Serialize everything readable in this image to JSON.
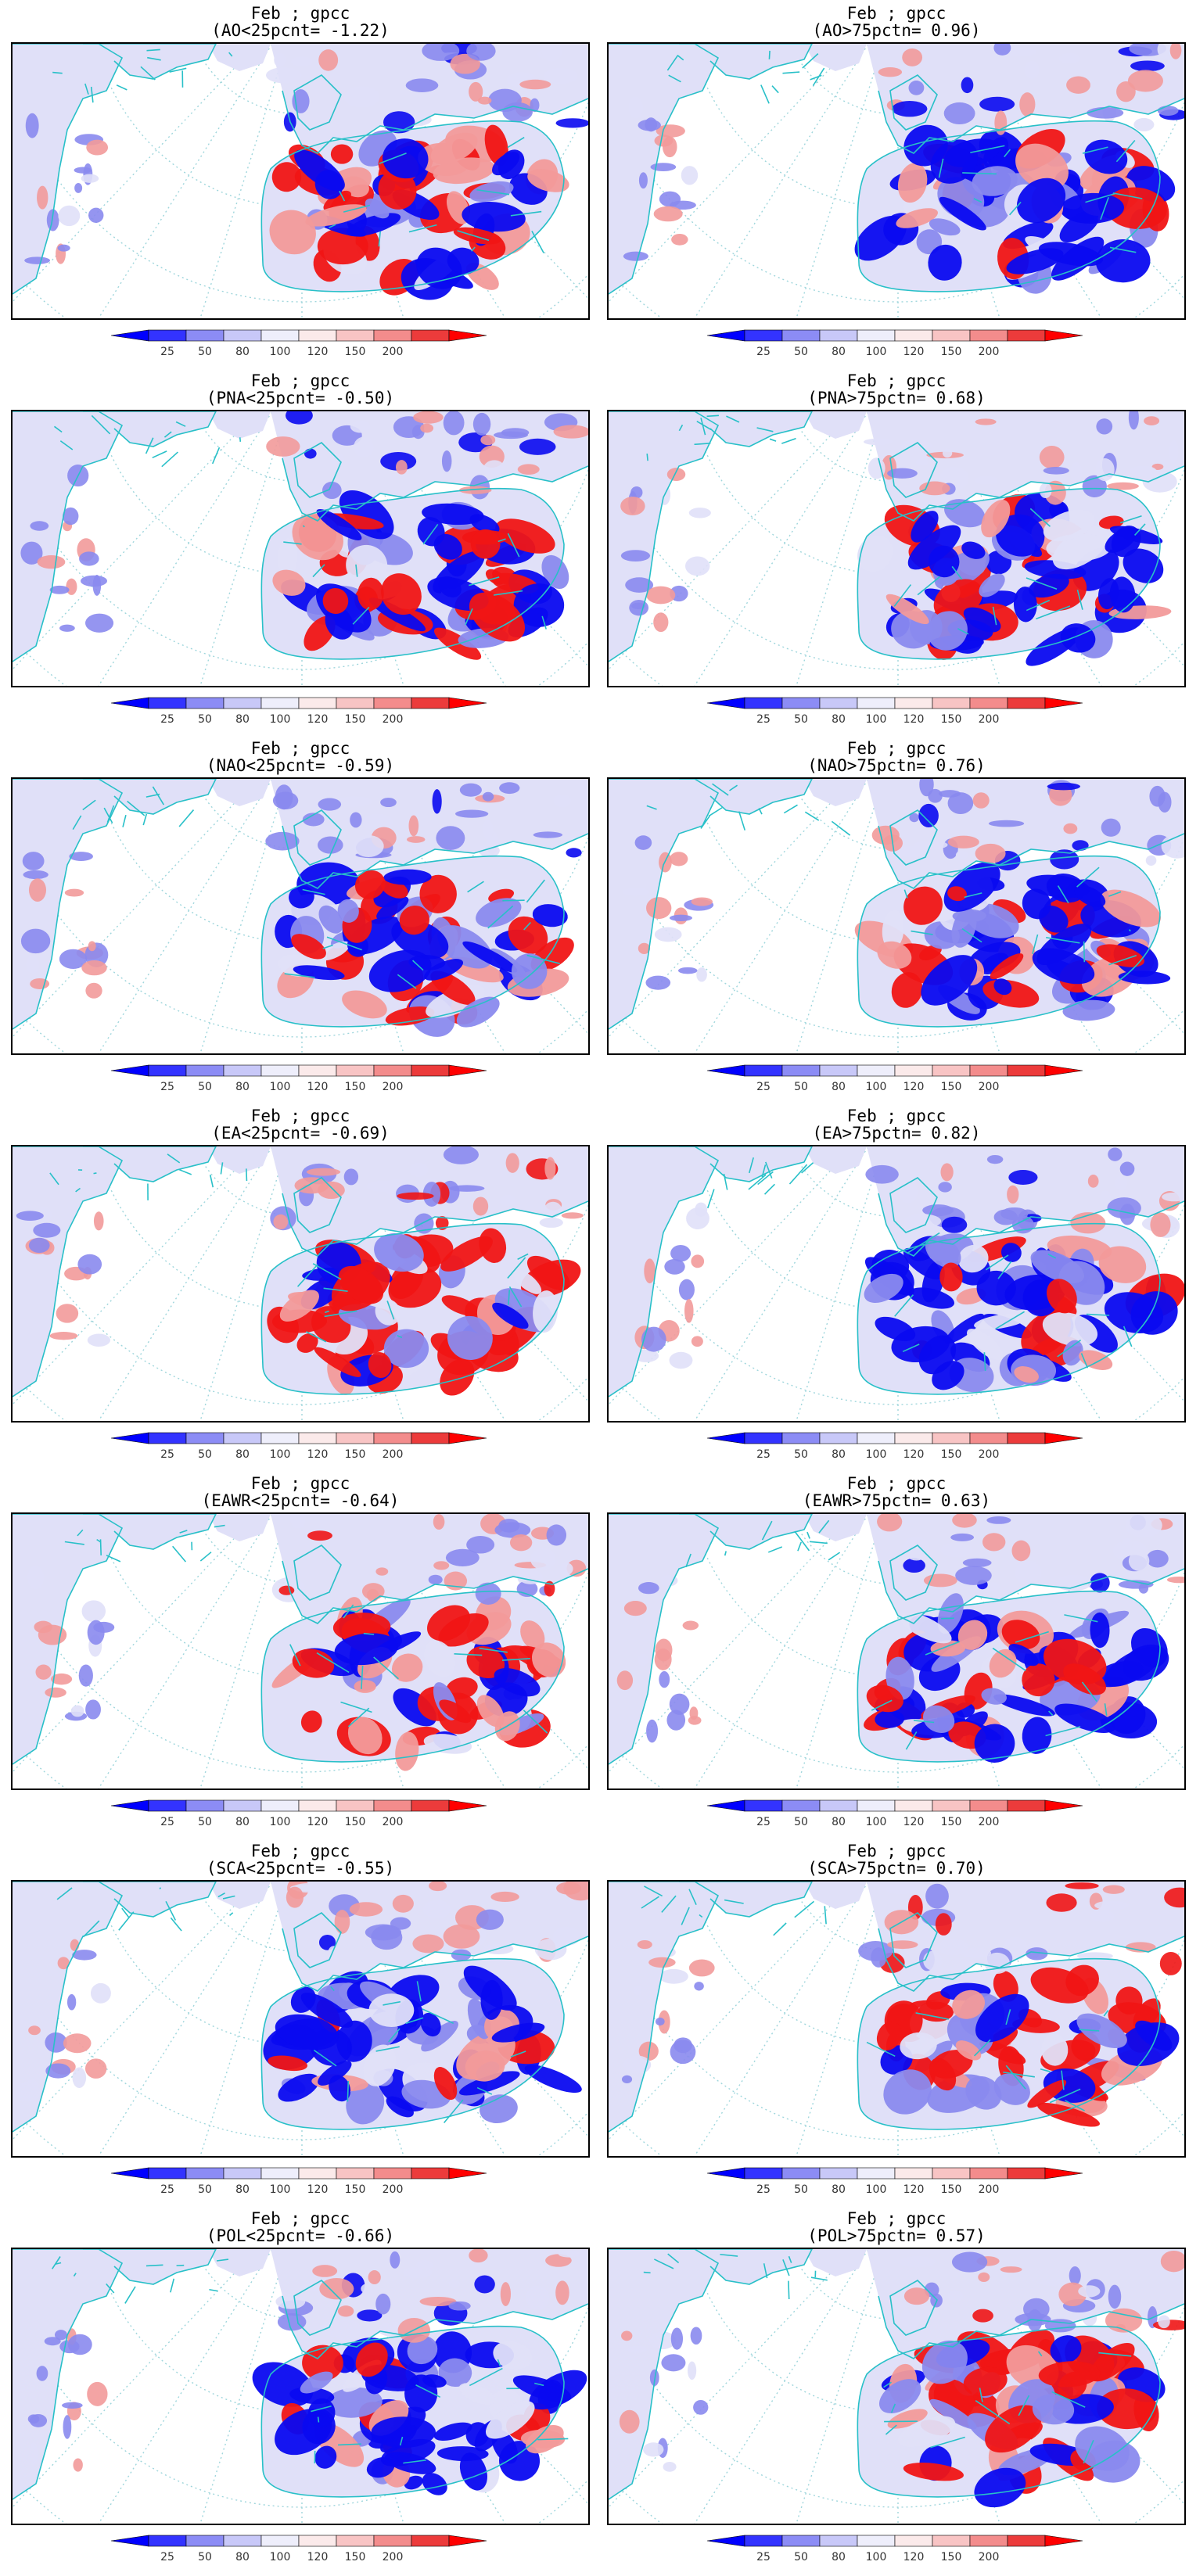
{
  "colorbar": {
    "levels": [
      "25",
      "50",
      "80",
      "100",
      "120",
      "150",
      "200"
    ],
    "colors": [
      "#0000ff",
      "#3333ff",
      "#8c8cf5",
      "#c8c8f8",
      "#eeeefb",
      "#fbeaea",
      "#f8c4c4",
      "#f38c8c",
      "#ec3b3b",
      "#ff0000"
    ]
  },
  "map_colors": {
    "land_light": "#e0e0f8",
    "blue": "#0a0af0",
    "blue_mid": "#8a8aee",
    "red": "#f01515",
    "red_mid": "#f29a9a",
    "coast": "#28c0c8",
    "graticule": "#9fd6dc"
  },
  "panels": [
    {
      "title": "Feb ; gpcc",
      "subtitle": "(AO<25pcnt=   -1.22)",
      "pattern": "mixed"
    },
    {
      "title": "Feb ; gpcc",
      "subtitle": "(AO>75pctn=    0.96)",
      "pattern": "blue"
    },
    {
      "title": "Feb ; gpcc",
      "subtitle": "(PNA<25pcnt=   -0.50)",
      "pattern": "blue_mixed"
    },
    {
      "title": "Feb ; gpcc",
      "subtitle": "(PNA>75pctn=    0.68)",
      "pattern": "blue_mixed"
    },
    {
      "title": "Feb ; gpcc",
      "subtitle": "(NAO<25pcnt=   -0.59)",
      "pattern": "mixed"
    },
    {
      "title": "Feb ; gpcc",
      "subtitle": "(NAO>75pctn=    0.76)",
      "pattern": "blue"
    },
    {
      "title": "Feb ; gpcc",
      "subtitle": "(EA<25pcnt=   -0.69)",
      "pattern": "red"
    },
    {
      "title": "Feb ; gpcc",
      "subtitle": "(EA>75pctn=    0.82)",
      "pattern": "blue"
    },
    {
      "title": "Feb ; gpcc",
      "subtitle": "(EAWR<25pcnt=   -0.64)",
      "pattern": "red_mixed"
    },
    {
      "title": "Feb ; gpcc",
      "subtitle": "(EAWR>75pctn=   0.63)",
      "pattern": "blue_mixed"
    },
    {
      "title": "Feb ; gpcc",
      "subtitle": "(SCA<25pcnt=   -0.55)",
      "pattern": "blue"
    },
    {
      "title": "Feb ; gpcc",
      "subtitle": "(SCA>75pctn=    0.70)",
      "pattern": "red"
    },
    {
      "title": "Feb ; gpcc",
      "subtitle": "(POL<25pcnt=   -0.66)",
      "pattern": "blue"
    },
    {
      "title": "Feb ; gpcc",
      "subtitle": "(POL>75pctn=    0.57)",
      "pattern": "red_mixed"
    }
  ]
}
